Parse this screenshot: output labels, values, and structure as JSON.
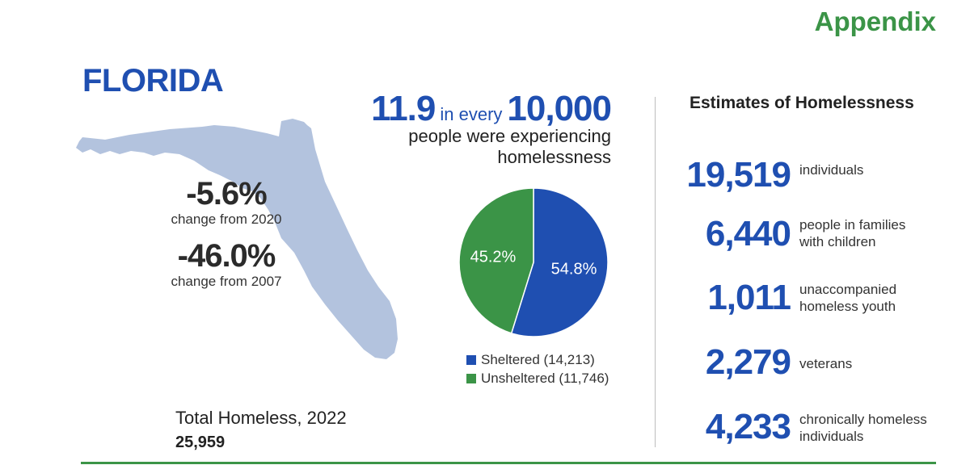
{
  "header": {
    "appendix": "Appendix"
  },
  "state": {
    "name": "FLORIDA"
  },
  "changes": [
    {
      "value": "-5.6%",
      "label": "change from 2020"
    },
    {
      "value": "-46.0%",
      "label": "change from 2007"
    }
  ],
  "total": {
    "label": "Total Homeless, 2022",
    "value": "25,959"
  },
  "rate": {
    "number": "11.9",
    "connector": "in every",
    "per": "10,000",
    "line2": "people were experiencing",
    "line3": "homelessness"
  },
  "chart_data": {
    "type": "pie",
    "slices": [
      {
        "name": "Sheltered",
        "value": 54.8,
        "label": "54.8%",
        "count": "14,213",
        "legend": "Sheltered (14,213)",
        "color": "#1f4fb1"
      },
      {
        "name": "Unsheltered",
        "value": 45.2,
        "label": "45.2%",
        "count": "11,746",
        "legend": "Unsheltered (11,746)",
        "color": "#3b9447"
      }
    ]
  },
  "estimates": {
    "title": "Estimates of Homelessness",
    "items": [
      {
        "value": "19,519",
        "label": "individuals"
      },
      {
        "value": "6,440",
        "label": "people in families with children"
      },
      {
        "value": "1,011",
        "label": "unaccompanied homeless youth"
      },
      {
        "value": "2,279",
        "label": "veterans"
      },
      {
        "value": "4,233",
        "label": "chronically homeless individuals"
      }
    ]
  },
  "colors": {
    "blue": "#1f4fb1",
    "green": "#3b9447",
    "map": "#b3c3de"
  }
}
